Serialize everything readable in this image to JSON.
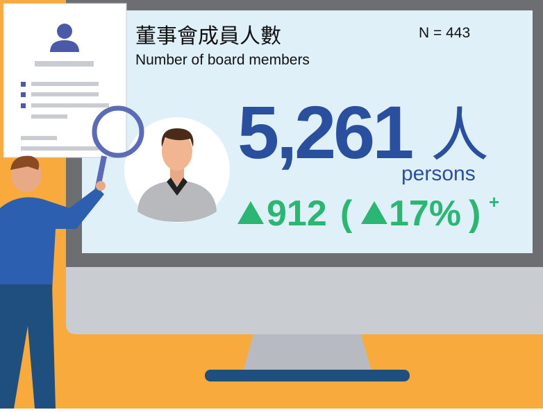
{
  "header": {
    "title": "董事會成員人數",
    "subtitle": "Number of board members",
    "sample": "N = 443"
  },
  "metric": {
    "value": "5,261",
    "unit": "人",
    "unit_en": "persons",
    "change": {
      "amount": "912",
      "open": "(",
      "percent": "17%",
      "close": ")",
      "note": "+"
    }
  }
}
